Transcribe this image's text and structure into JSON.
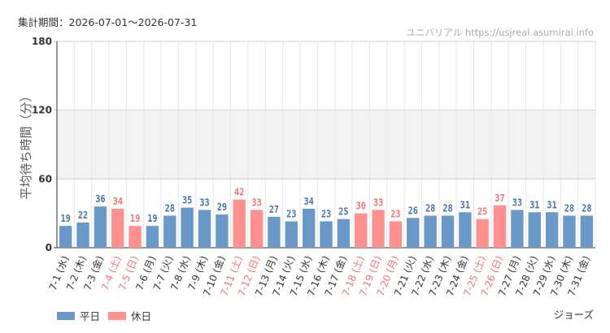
{
  "header": {
    "period": "集計期間：2026-07-01～2026-07-31",
    "source": "ユニバリアル  https://usjreal.asumirai.info"
  },
  "legend": {
    "weekday": "平日",
    "holiday": "休日"
  },
  "attraction": "ジョーズ",
  "colors": {
    "weekday_bar": "#6a98c8",
    "holiday_bar": "#ff9090",
    "weekday_text": "#4a72a8",
    "holiday_text": "#f07272",
    "band": "#f2f2f2",
    "grid": "#e6e6e6"
  },
  "chart_data": {
    "type": "bar",
    "ylabel": "平均待ち時間（分）",
    "ylim": [
      0,
      180
    ],
    "yticks": [
      "0",
      "60",
      "120",
      "180"
    ],
    "band": [
      60,
      120
    ],
    "categories": [
      "7-1 (水)",
      "7-2 (木)",
      "7-3 (金)",
      "7-4 (土)",
      "7-5 (日)",
      "7-6 (月)",
      "7-7 (火)",
      "7-8 (水)",
      "7-9 (木)",
      "7-10 (金)",
      "7-11 (土)",
      "7-12 (日)",
      "7-13 (月)",
      "7-14 (火)",
      "7-15 (水)",
      "7-16 (木)",
      "7-17 (金)",
      "7-18 (土)",
      "7-19 (日)",
      "7-20 (月)",
      "7-21 (火)",
      "7-22 (水)",
      "7-23 (木)",
      "7-24 (金)",
      "7-25 (土)",
      "7-26 (日)",
      "7-27 (月)",
      "7-28 (火)",
      "7-29 (水)",
      "7-30 (木)",
      "7-31 (金)"
    ],
    "values": [
      19,
      22,
      36,
      34,
      19,
      19,
      28,
      35,
      33,
      29,
      42,
      33,
      27,
      23,
      34,
      23,
      25,
      30,
      33,
      23,
      26,
      28,
      28,
      31,
      25,
      37,
      33,
      31,
      31,
      28,
      28
    ],
    "day_type": [
      "平日",
      "平日",
      "平日",
      "休日",
      "休日",
      "平日",
      "平日",
      "平日",
      "平日",
      "平日",
      "休日",
      "休日",
      "平日",
      "平日",
      "平日",
      "平日",
      "平日",
      "休日",
      "休日",
      "休日",
      "平日",
      "平日",
      "平日",
      "平日",
      "休日",
      "休日",
      "平日",
      "平日",
      "平日",
      "平日",
      "平日"
    ]
  }
}
